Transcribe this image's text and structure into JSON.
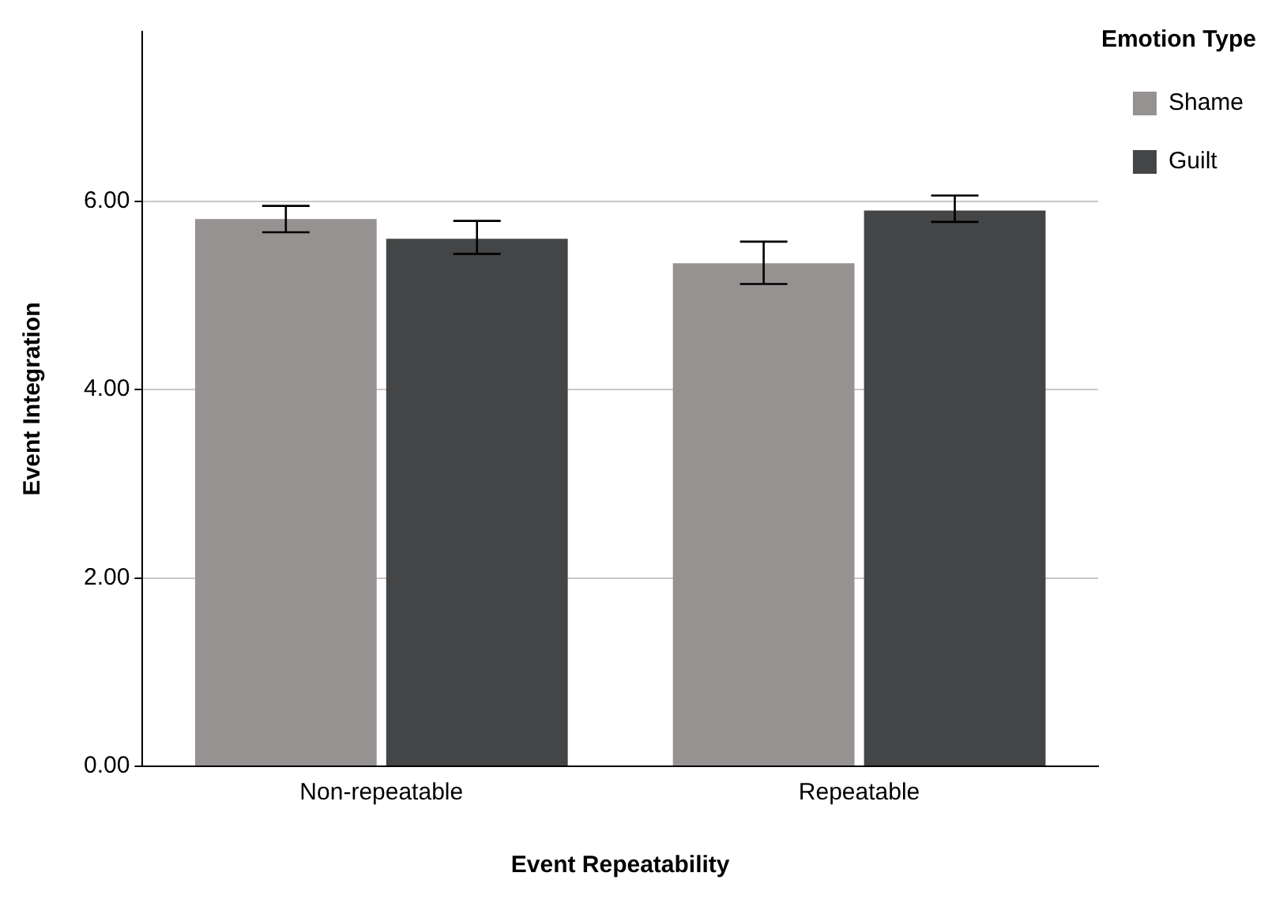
{
  "chart_data": {
    "type": "bar",
    "xlabel": "Event Repeatability",
    "ylabel": "Event Integration",
    "legend_title": "Emotion Type",
    "categories": [
      "Non-repeatable",
      "Repeatable"
    ],
    "series": [
      {
        "name": "Shame",
        "color": "#969291",
        "values": [
          5.81,
          5.34
        ],
        "errors": [
          [
            5.67,
            5.95
          ],
          [
            5.12,
            5.57
          ]
        ]
      },
      {
        "name": "Guilt",
        "color": "#444546",
        "values": [
          5.6,
          5.9
        ],
        "errors": [
          [
            5.44,
            5.79
          ],
          [
            5.78,
            6.06
          ]
        ]
      }
    ],
    "ylim": [
      0,
      7.8
    ],
    "yticks": [
      {
        "value": 0,
        "label": "0.00"
      },
      {
        "value": 2,
        "label": "2.00"
      },
      {
        "value": 4,
        "label": "4.00"
      },
      {
        "value": 6,
        "label": "6.00"
      }
    ],
    "grid": "y",
    "legend": "top right"
  }
}
